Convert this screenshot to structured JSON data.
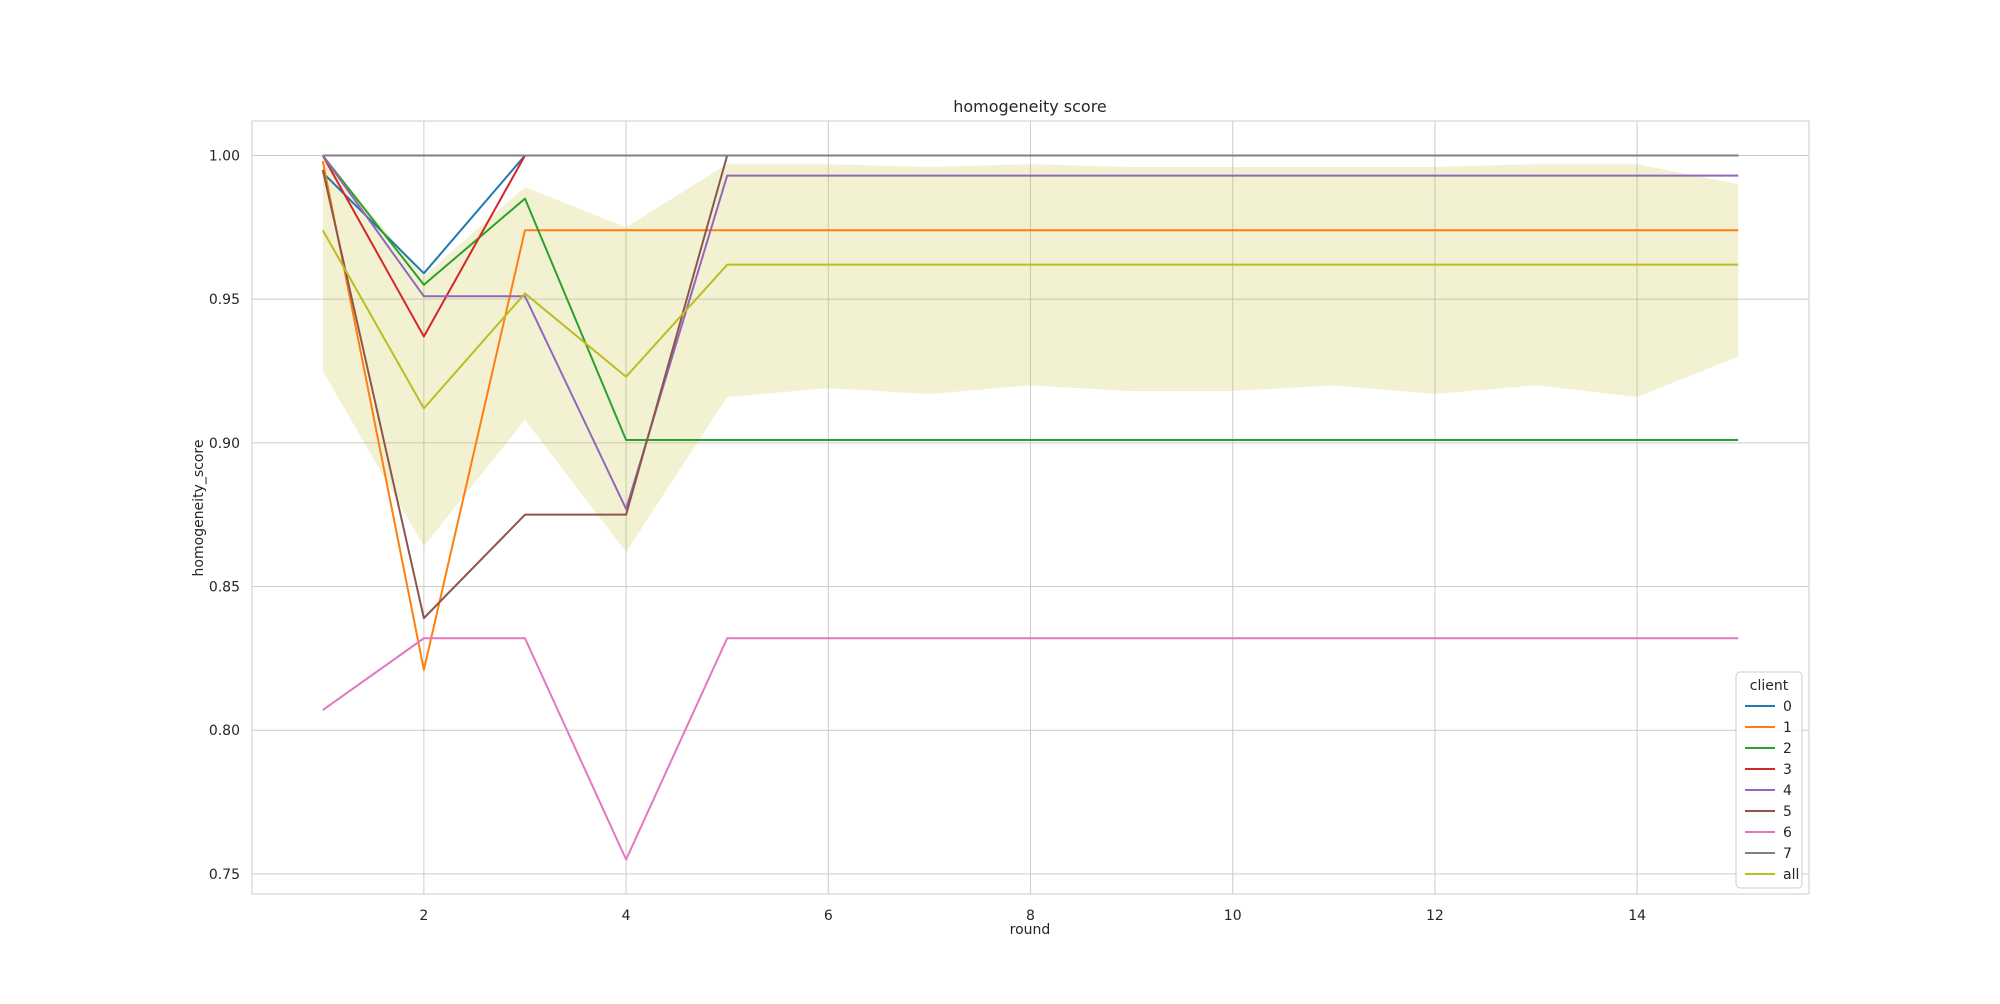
{
  "chart_data": {
    "type": "line",
    "title": "homogeneity score",
    "xlabel": "round",
    "ylabel": "homogeneity_score",
    "xlim": [
      0.3,
      15.7
    ],
    "ylim": [
      0.743,
      1.012
    ],
    "x_ticks": [
      2,
      4,
      6,
      8,
      10,
      12,
      14
    ],
    "y_ticks": [
      0.75,
      0.8,
      0.85,
      0.9,
      0.95,
      1.0
    ],
    "x_tick_labels": [
      "2",
      "4",
      "6",
      "8",
      "10",
      "12",
      "14"
    ],
    "y_tick_labels": [
      "0.75",
      "0.80",
      "0.85",
      "0.90",
      "0.95",
      "1.00"
    ],
    "grid": true,
    "legend_title": "client",
    "legend_position": "bottom-right",
    "x": [
      1,
      2,
      3,
      4,
      5,
      6,
      7,
      8,
      9,
      10,
      11,
      12,
      13,
      14,
      15
    ],
    "series": [
      {
        "name": "0",
        "color": "#1f77b4",
        "values": [
          0.994,
          0.959,
          1.0,
          1.0,
          1.0,
          1.0,
          1.0,
          1.0,
          1.0,
          1.0,
          1.0,
          1.0,
          1.0,
          1.0,
          1.0
        ]
      },
      {
        "name": "1",
        "color": "#ff7f0e",
        "values": [
          0.998,
          0.821,
          0.974,
          0.974,
          0.974,
          0.974,
          0.974,
          0.974,
          0.974,
          0.974,
          0.974,
          0.974,
          0.974,
          0.974,
          0.974
        ]
      },
      {
        "name": "2",
        "color": "#2ca02c",
        "values": [
          1.0,
          0.955,
          0.985,
          0.901,
          0.901,
          0.901,
          0.901,
          0.901,
          0.901,
          0.901,
          0.901,
          0.901,
          0.901,
          0.901,
          0.901
        ]
      },
      {
        "name": "3",
        "color": "#d62728",
        "values": [
          1.0,
          0.937,
          1.0,
          1.0,
          1.0,
          1.0,
          1.0,
          1.0,
          1.0,
          1.0,
          1.0,
          1.0,
          1.0,
          1.0,
          1.0
        ]
      },
      {
        "name": "4",
        "color": "#9467bd",
        "values": [
          1.0,
          0.951,
          0.951,
          0.877,
          0.993,
          0.993,
          0.993,
          0.993,
          0.993,
          0.993,
          0.993,
          0.993,
          0.993,
          0.993,
          0.993
        ]
      },
      {
        "name": "5",
        "color": "#8c564b",
        "values": [
          0.995,
          0.839,
          0.875,
          0.875,
          1.0,
          1.0,
          1.0,
          1.0,
          1.0,
          1.0,
          1.0,
          1.0,
          1.0,
          1.0,
          1.0
        ]
      },
      {
        "name": "6",
        "color": "#e377c2",
        "values": [
          0.807,
          0.832,
          0.832,
          0.755,
          0.832,
          0.832,
          0.832,
          0.832,
          0.832,
          0.832,
          0.832,
          0.832,
          0.832,
          0.832,
          0.832
        ]
      },
      {
        "name": "7",
        "color": "#7f7f7f",
        "values": [
          1.0,
          1.0,
          1.0,
          1.0,
          1.0,
          1.0,
          1.0,
          1.0,
          1.0,
          1.0,
          1.0,
          1.0,
          1.0,
          1.0,
          1.0
        ]
      },
      {
        "name": "all",
        "color": "#bcbd22",
        "values": [
          0.974,
          0.912,
          0.952,
          0.923,
          0.962,
          0.962,
          0.962,
          0.962,
          0.962,
          0.962,
          0.962,
          0.962,
          0.962,
          0.962,
          0.962
        ],
        "band_lower": [
          0.925,
          0.864,
          0.908,
          0.862,
          0.916,
          0.919,
          0.917,
          0.92,
          0.918,
          0.918,
          0.92,
          0.917,
          0.92,
          0.916,
          0.93
        ],
        "band_upper": [
          1.0,
          0.958,
          0.989,
          0.975,
          0.997,
          0.997,
          0.996,
          0.997,
          0.996,
          0.996,
          0.996,
          0.996,
          0.997,
          0.997,
          0.99
        ]
      }
    ]
  }
}
